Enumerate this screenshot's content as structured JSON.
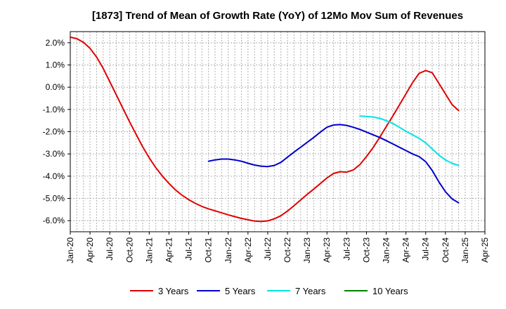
{
  "chart_data": {
    "type": "line",
    "title": "[1873]  Trend of Mean of Growth Rate (YoY) of 12Mo Mov Sum of Revenues",
    "xlabel": "",
    "ylabel": "",
    "ylim": [
      -6.5,
      2.5
    ],
    "yticks": [
      2.0,
      1.0,
      0.0,
      -1.0,
      -2.0,
      -3.0,
      -4.0,
      -5.0,
      -6.0
    ],
    "ytick_labels": [
      "2.0%",
      "1.0%",
      "0.0%",
      "-1.0%",
      "-2.0%",
      "-3.0%",
      "-4.0%",
      "-5.0%",
      "-6.0%"
    ],
    "x_range_months": [
      0,
      63
    ],
    "xtick_labels": [
      "Jan-20",
      "Apr-20",
      "Jul-20",
      "Oct-20",
      "Jan-21",
      "Apr-21",
      "Jul-21",
      "Oct-21",
      "Jan-22",
      "Apr-22",
      "Jul-22",
      "Oct-22",
      "Jan-23",
      "Apr-23",
      "Jul-23",
      "Oct-23",
      "Jan-24",
      "Apr-24",
      "Jul-24",
      "Oct-24",
      "Jan-25",
      "Apr-25"
    ],
    "grid": true,
    "legend_position": "bottom",
    "series": [
      {
        "name": "3 Years",
        "color": "#e00000",
        "points": [
          [
            0,
            2.25
          ],
          [
            1,
            2.18
          ],
          [
            2,
            2.02
          ],
          [
            3,
            1.75
          ],
          [
            4,
            1.35
          ],
          [
            5,
            0.85
          ],
          [
            6,
            0.25
          ],
          [
            7,
            -0.35
          ],
          [
            8,
            -0.95
          ],
          [
            9,
            -1.55
          ],
          [
            10,
            -2.12
          ],
          [
            11,
            -2.68
          ],
          [
            12,
            -3.18
          ],
          [
            13,
            -3.62
          ],
          [
            14,
            -4.0
          ],
          [
            15,
            -4.33
          ],
          [
            16,
            -4.62
          ],
          [
            17,
            -4.86
          ],
          [
            18,
            -5.06
          ],
          [
            19,
            -5.22
          ],
          [
            20,
            -5.36
          ],
          [
            21,
            -5.47
          ],
          [
            22,
            -5.56
          ],
          [
            23,
            -5.65
          ],
          [
            24,
            -5.74
          ],
          [
            25,
            -5.82
          ],
          [
            26,
            -5.9
          ],
          [
            27,
            -5.96
          ],
          [
            28,
            -6.02
          ],
          [
            29,
            -6.04
          ],
          [
            30,
            -6.01
          ],
          [
            31,
            -5.92
          ],
          [
            32,
            -5.78
          ],
          [
            33,
            -5.57
          ],
          [
            34,
            -5.33
          ],
          [
            35,
            -5.07
          ],
          [
            36,
            -4.82
          ],
          [
            37,
            -4.58
          ],
          [
            38,
            -4.33
          ],
          [
            39,
            -4.08
          ],
          [
            40,
            -3.88
          ],
          [
            41,
            -3.8
          ],
          [
            42,
            -3.82
          ],
          [
            43,
            -3.72
          ],
          [
            44,
            -3.48
          ],
          [
            45,
            -3.12
          ],
          [
            46,
            -2.72
          ],
          [
            47,
            -2.26
          ],
          [
            48,
            -1.78
          ],
          [
            49,
            -1.3
          ],
          [
            50,
            -0.8
          ],
          [
            51,
            -0.3
          ],
          [
            52,
            0.2
          ],
          [
            53,
            0.62
          ],
          [
            54,
            0.75
          ],
          [
            55,
            0.65
          ],
          [
            56,
            0.18
          ],
          [
            57,
            -0.3
          ],
          [
            58,
            -0.78
          ],
          [
            59,
            -1.05
          ]
        ]
      },
      {
        "name": "5 Years",
        "color": "#0000cc",
        "points": [
          [
            21,
            -3.33
          ],
          [
            22,
            -3.27
          ],
          [
            23,
            -3.23
          ],
          [
            24,
            -3.23
          ],
          [
            25,
            -3.27
          ],
          [
            26,
            -3.33
          ],
          [
            27,
            -3.42
          ],
          [
            28,
            -3.5
          ],
          [
            29,
            -3.55
          ],
          [
            30,
            -3.57
          ],
          [
            31,
            -3.52
          ],
          [
            32,
            -3.38
          ],
          [
            33,
            -3.15
          ],
          [
            34,
            -2.92
          ],
          [
            35,
            -2.7
          ],
          [
            36,
            -2.48
          ],
          [
            37,
            -2.26
          ],
          [
            38,
            -2.02
          ],
          [
            39,
            -1.8
          ],
          [
            40,
            -1.7
          ],
          [
            41,
            -1.68
          ],
          [
            42,
            -1.72
          ],
          [
            43,
            -1.8
          ],
          [
            44,
            -1.9
          ],
          [
            45,
            -2.02
          ],
          [
            46,
            -2.14
          ],
          [
            47,
            -2.26
          ],
          [
            48,
            -2.4
          ],
          [
            49,
            -2.55
          ],
          [
            50,
            -2.7
          ],
          [
            51,
            -2.85
          ],
          [
            52,
            -3.0
          ],
          [
            53,
            -3.12
          ],
          [
            54,
            -3.35
          ],
          [
            55,
            -3.75
          ],
          [
            56,
            -4.25
          ],
          [
            57,
            -4.7
          ],
          [
            58,
            -5.02
          ],
          [
            59,
            -5.2
          ]
        ]
      },
      {
        "name": "7 Years",
        "color": "#00e5e5",
        "points": [
          [
            44,
            -1.3
          ],
          [
            45,
            -1.31
          ],
          [
            46,
            -1.34
          ],
          [
            47,
            -1.4
          ],
          [
            48,
            -1.5
          ],
          [
            49,
            -1.63
          ],
          [
            50,
            -1.8
          ],
          [
            51,
            -1.98
          ],
          [
            52,
            -2.14
          ],
          [
            53,
            -2.3
          ],
          [
            54,
            -2.5
          ],
          [
            55,
            -2.78
          ],
          [
            56,
            -3.05
          ],
          [
            57,
            -3.27
          ],
          [
            58,
            -3.42
          ],
          [
            59,
            -3.52
          ]
        ]
      },
      {
        "name": "10 Years",
        "color": "#008000",
        "points": []
      }
    ]
  }
}
